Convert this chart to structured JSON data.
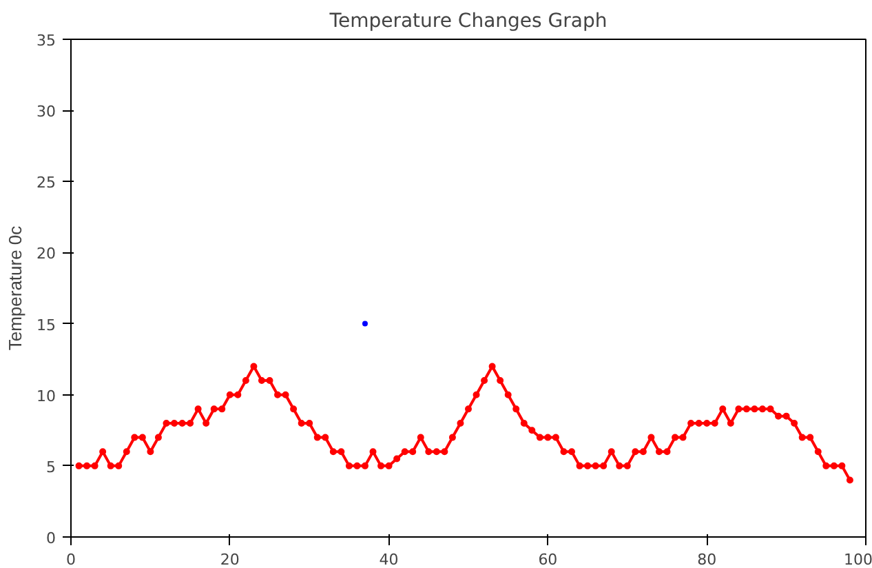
{
  "chart_data": {
    "type": "line",
    "title": "Temperature Changes Graph",
    "ylabel": "Temperature 0c",
    "xlim": [
      0,
      100
    ],
    "ylim": [
      0,
      35
    ],
    "xticks": [
      0,
      20,
      40,
      60,
      80,
      100
    ],
    "yticks": [
      0,
      5,
      10,
      15,
      20,
      25,
      30,
      35
    ],
    "marker": "circle",
    "grid": false,
    "series": [
      {
        "color": "#ff0000",
        "x": [
          1,
          2,
          3,
          4,
          5,
          6,
          7,
          8,
          9,
          10,
          11,
          12,
          13,
          14,
          15,
          16,
          17,
          18,
          19,
          20,
          21,
          22,
          23,
          24,
          25,
          26,
          27,
          28,
          29,
          30,
          31,
          32,
          33,
          34,
          35,
          36,
          37,
          38,
          39,
          40,
          41,
          42,
          43,
          44,
          45,
          46,
          47,
          48,
          49,
          50,
          51,
          52,
          53,
          54,
          55,
          56,
          57,
          58,
          59,
          60,
          61,
          62,
          63,
          64,
          65,
          66,
          67,
          68,
          69,
          70,
          71,
          72,
          73,
          74,
          75,
          76,
          77,
          78,
          79,
          80,
          81,
          82,
          83,
          84,
          85,
          86,
          87,
          88,
          89,
          90,
          91,
          92,
          93,
          94,
          95,
          96,
          97,
          98
        ],
        "values": [
          5,
          5,
          5,
          6,
          5,
          5,
          6,
          7,
          7,
          6,
          7,
          8,
          8,
          8,
          8,
          9,
          8,
          9,
          9,
          10,
          10,
          11,
          12,
          11,
          11,
          10,
          10,
          9,
          8,
          8,
          7,
          7,
          6,
          6,
          5,
          5,
          5,
          6,
          5,
          5,
          5.5,
          6,
          6,
          7,
          6,
          6,
          6,
          7,
          8,
          9,
          10,
          11,
          12,
          11,
          10,
          9,
          8,
          7.5,
          7,
          7,
          7,
          6,
          6,
          5,
          5,
          5,
          5,
          6,
          5,
          5,
          6,
          6,
          7,
          6,
          6,
          7,
          7,
          8,
          8,
          8,
          8,
          9,
          8,
          9,
          9,
          9,
          9,
          9,
          8.5,
          8.5,
          8,
          7,
          7,
          6,
          5,
          5,
          5,
          4
        ]
      },
      {
        "type": "scatter",
        "color": "#0000ff",
        "x": [
          37
        ],
        "values": [
          15
        ]
      }
    ]
  }
}
